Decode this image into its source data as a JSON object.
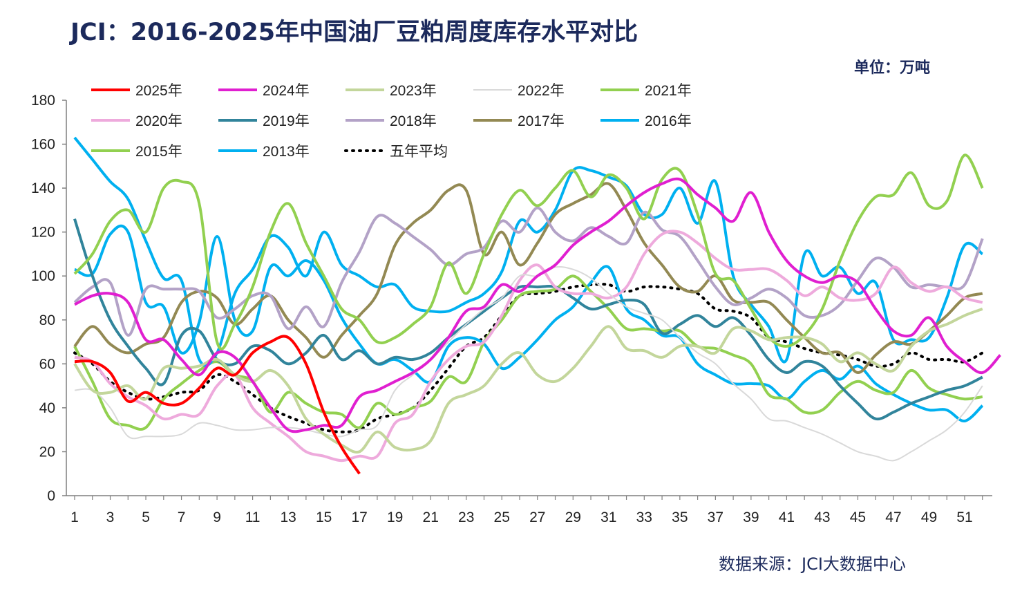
{
  "header": {
    "title": "JCI：2016-2025年中国油厂豆粕周度库存水平对比",
    "unit": "单位：万吨"
  },
  "footer": {
    "source": "数据来源：JCI大数据中心"
  },
  "chart_data": {
    "type": "line",
    "title": "JCI：2016-2025年中国油厂豆粕周度库存水平对比",
    "ylabel": "",
    "xlabel": "",
    "ylim": [
      0,
      180
    ],
    "yticks": [
      0,
      20,
      40,
      60,
      80,
      100,
      120,
      140,
      160,
      180
    ],
    "xlim": [
      1,
      52
    ],
    "xticks": [
      1,
      3,
      5,
      7,
      9,
      11,
      13,
      15,
      17,
      19,
      21,
      23,
      25,
      27,
      29,
      31,
      33,
      35,
      37,
      39,
      41,
      43,
      45,
      47,
      49,
      51
    ],
    "grid": false,
    "legend_position": "top",
    "series": [
      {
        "name": "2025年",
        "color": "#ff0000",
        "width": 4,
        "dash": "",
        "start": 1,
        "values": [
          61,
          61,
          56,
          43,
          47,
          42,
          42,
          49,
          58,
          55,
          65,
          70,
          72,
          60,
          38,
          22,
          10
        ]
      },
      {
        "name": "2024年",
        "color": "#e01fd0",
        "width": 4,
        "dash": "",
        "start": 1,
        "values": [
          87,
          91,
          92,
          88,
          71,
          71,
          62,
          55,
          65,
          63,
          52,
          40,
          30,
          30,
          32,
          32,
          45,
          48,
          52,
          56,
          62,
          72,
          84,
          86,
          96,
          93,
          100,
          105,
          114,
          120,
          125,
          132,
          138,
          142,
          144,
          137,
          131,
          125,
          138,
          120,
          107,
          100,
          97,
          100,
          97,
          85,
          75,
          73,
          81,
          68,
          61,
          56,
          64
        ]
      },
      {
        "name": "2023年",
        "color": "#c3d69b",
        "width": 4,
        "dash": "",
        "start": 1,
        "values": [
          60,
          48,
          47,
          50,
          44,
          58,
          58,
          59,
          62,
          55,
          52,
          57,
          50,
          35,
          28,
          23,
          20,
          29,
          22,
          21,
          25,
          42,
          46,
          50,
          60,
          65,
          55,
          52,
          58,
          68,
          77,
          67,
          66,
          63,
          68,
          68,
          65,
          76,
          75,
          71,
          72,
          72,
          69,
          61,
          65,
          60,
          57,
          68,
          75,
          78,
          82,
          85
        ]
      },
      {
        "name": "2022年",
        "color": "#d9d9d9",
        "width": 2,
        "dash": "",
        "start": 1,
        "values": [
          48,
          48,
          40,
          27,
          27,
          27,
          28,
          33,
          32,
          30,
          30,
          31,
          31,
          30,
          28,
          27,
          30,
          32,
          48,
          55,
          62,
          70,
          78,
          85,
          90,
          100,
          100,
          104,
          103,
          99,
          92,
          86,
          83,
          80,
          72,
          65,
          60,
          51,
          44,
          35,
          34,
          31,
          28,
          24,
          20,
          18,
          16,
          20,
          25,
          30,
          38,
          50
        ]
      },
      {
        "name": "2021年",
        "color": "#92d050",
        "width": 4,
        "dash": "",
        "start": 1,
        "values": [
          101,
          110,
          125,
          130,
          120,
          140,
          143,
          133,
          70,
          78,
          95,
          120,
          133,
          115,
          100,
          85,
          80,
          70,
          72,
          78,
          86,
          106,
          92,
          110,
          128,
          139,
          132,
          140,
          148,
          136,
          146,
          140,
          126,
          144,
          148,
          128,
          101,
          98,
          85,
          72,
          68,
          73,
          85,
          107,
          125,
          136,
          137,
          147,
          132,
          134,
          155,
          140
        ]
      },
      {
        "name": "2020年",
        "color": "#eeaadc",
        "width": 4,
        "dash": "",
        "start": 1,
        "values": [
          63,
          61,
          51,
          45,
          41,
          35,
          37,
          37,
          50,
          55,
          40,
          33,
          27,
          20,
          18,
          16,
          18,
          18,
          33,
          37,
          52,
          62,
          68,
          70,
          82,
          98,
          105,
          95,
          92,
          92,
          90,
          95,
          110,
          119,
          120,
          115,
          108,
          103,
          103,
          103,
          98,
          91,
          95,
          90,
          89,
          92,
          104,
          97,
          93,
          95,
          90,
          88
        ]
      },
      {
        "name": "2019年",
        "color": "#31849b",
        "width": 4,
        "dash": "",
        "start": 1,
        "values": [
          126,
          100,
          80,
          68,
          58,
          51,
          73,
          75,
          62,
          60,
          68,
          66,
          60,
          65,
          73,
          62,
          66,
          60,
          63,
          62,
          65,
          72,
          78,
          84,
          90,
          95,
          95,
          95,
          90,
          85,
          87,
          89,
          87,
          74,
          78,
          82,
          77,
          81,
          73,
          62,
          56,
          61,
          59,
          50,
          42,
          35,
          38,
          42,
          45,
          48,
          50,
          54
        ]
      },
      {
        "name": "2018年",
        "color": "#b3a2c7",
        "width": 4,
        "dash": "",
        "start": 1,
        "values": [
          88,
          95,
          97,
          73,
          94,
          94,
          94,
          93,
          81,
          85,
          91,
          91,
          76,
          86,
          77,
          97,
          111,
          127,
          124,
          118,
          112,
          105,
          110,
          113,
          125,
          120,
          131,
          120,
          116,
          122,
          118,
          115,
          129,
          121,
          118,
          107,
          95,
          87,
          90,
          94,
          90,
          82,
          82,
          87,
          98,
          108,
          104,
          95,
          96,
          95,
          96,
          117
        ]
      },
      {
        "name": "2017年",
        "color": "#938953",
        "width": 4,
        "dash": "",
        "start": 1,
        "values": [
          68,
          77,
          69,
          65,
          69,
          72,
          88,
          93,
          90,
          78,
          85,
          91,
          80,
          72,
          63,
          73,
          82,
          92,
          114,
          124,
          130,
          139,
          139,
          110,
          120,
          105,
          115,
          128,
          133,
          137,
          142,
          130,
          115,
          105,
          95,
          93,
          100,
          89,
          88,
          88,
          80,
          72,
          65,
          65,
          56,
          64,
          70,
          69,
          75,
          82,
          90,
          92
        ]
      },
      {
        "name": "2016年",
        "color": "#00b0f0",
        "width": 4,
        "dash": "",
        "start": 1,
        "values": [
          163,
          153,
          143,
          135,
          116,
          99,
          98,
          62,
          65,
          92,
          103,
          118,
          113,
          100,
          120,
          105,
          100,
          95,
          96,
          86,
          84,
          84,
          88,
          92,
          102,
          125,
          120,
          130,
          148,
          148,
          145,
          141,
          128,
          128,
          140,
          124,
          143,
          100,
          87,
          77,
          62,
          110,
          100,
          104,
          92,
          97,
          71,
          71,
          72,
          90,
          114,
          110
        ]
      },
      {
        "name": "2015年",
        "color": "#92d050",
        "width": 4,
        "dash": "",
        "start": 1,
        "values": [
          68,
          52,
          35,
          32,
          31,
          44,
          51,
          57,
          61,
          55,
          52,
          38,
          47,
          42,
          38,
          37,
          31,
          42,
          37,
          40,
          43,
          54,
          52,
          70,
          80,
          91,
          93,
          94,
          100,
          93,
          85,
          76,
          76,
          75,
          75,
          68,
          67,
          64,
          60,
          46,
          44,
          38,
          39,
          47,
          52,
          48,
          47,
          57,
          49,
          46,
          44,
          45
        ]
      },
      {
        "name": "2013年",
        "color": "#00b0f0",
        "width": 4,
        "dash": "",
        "start": 1,
        "values": [
          103,
          101,
          119,
          120,
          88,
          86,
          65,
          79,
          118,
          80,
          75,
          104,
          100,
          107,
          98,
          81,
          69,
          60,
          62,
          57,
          52,
          68,
          72,
          69,
          58,
          63,
          71,
          80,
          86,
          97,
          104,
          85,
          80,
          73,
          72,
          60,
          55,
          51,
          51,
          50,
          44,
          52,
          57,
          53,
          59,
          51,
          46,
          42,
          39,
          39,
          34,
          41
        ]
      },
      {
        "name": "五年平均",
        "color": "#000000",
        "width": 4,
        "dash": "2 8",
        "start": 1,
        "values": [
          65,
          60,
          52,
          47,
          44,
          45,
          47,
          48,
          55,
          52,
          46,
          40,
          36,
          33,
          30,
          29,
          30,
          35,
          37,
          40,
          48,
          58,
          68,
          72,
          82,
          91,
          92,
          93,
          95,
          96,
          96,
          93,
          95,
          95,
          94,
          92,
          85,
          84,
          81,
          72,
          70,
          67,
          65,
          64,
          62,
          59,
          60,
          65,
          62,
          62,
          61,
          65
        ]
      }
    ]
  }
}
